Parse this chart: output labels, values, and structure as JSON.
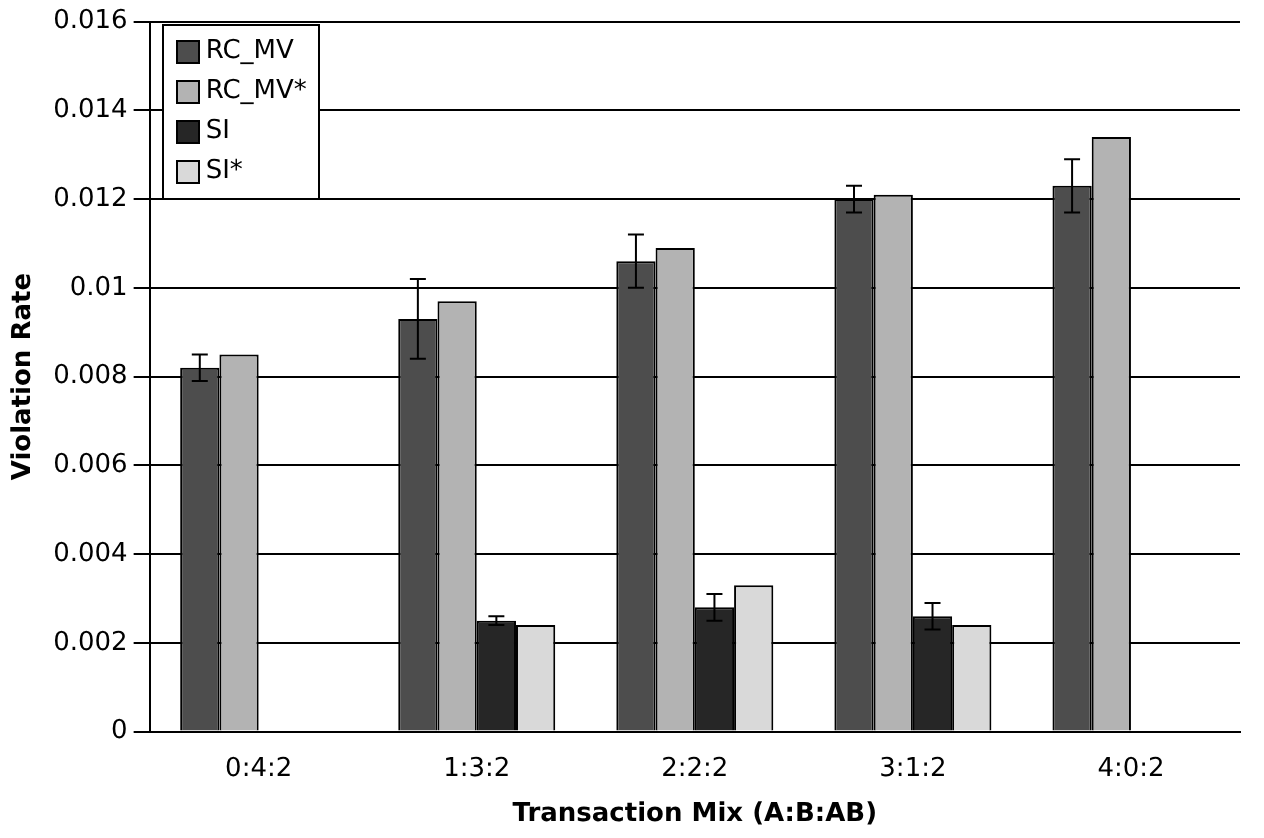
{
  "chart_data": {
    "type": "bar",
    "xlabel": "Transaction Mix (A:B:AB)",
    "ylabel": "Violation Rate",
    "categories": [
      "0:4:2",
      "1:3:2",
      "2:2:2",
      "3:1:2",
      "4:0:2"
    ],
    "series": [
      {
        "name": "RC_MV",
        "color": "#4d4d4d",
        "values": [
          0.0082,
          0.0093,
          0.0106,
          0.012,
          0.0123
        ],
        "errors": [
          0.0003,
          0.0009,
          0.0006,
          0.0003,
          0.0006
        ]
      },
      {
        "name": "RC_MV*",
        "color": "#b3b3b3",
        "values": [
          0.0085,
          0.0097,
          0.0109,
          0.0121,
          0.0134
        ]
      },
      {
        "name": "SI",
        "color": "#262626",
        "values": [
          0,
          0.0025,
          0.0028,
          0.0026,
          0
        ],
        "errors": [
          null,
          0.0001,
          0.0003,
          0.0003,
          null
        ]
      },
      {
        "name": "SI*",
        "color": "#d9d9d9",
        "values": [
          0,
          0.0024,
          0.0033,
          0.0024,
          0
        ]
      }
    ],
    "ylim": [
      0,
      0.016
    ],
    "yticks": [
      0,
      0.002,
      0.004,
      0.006,
      0.008,
      0.01,
      0.012,
      0.014,
      0.016
    ],
    "grid": "y",
    "legend": "top left"
  }
}
